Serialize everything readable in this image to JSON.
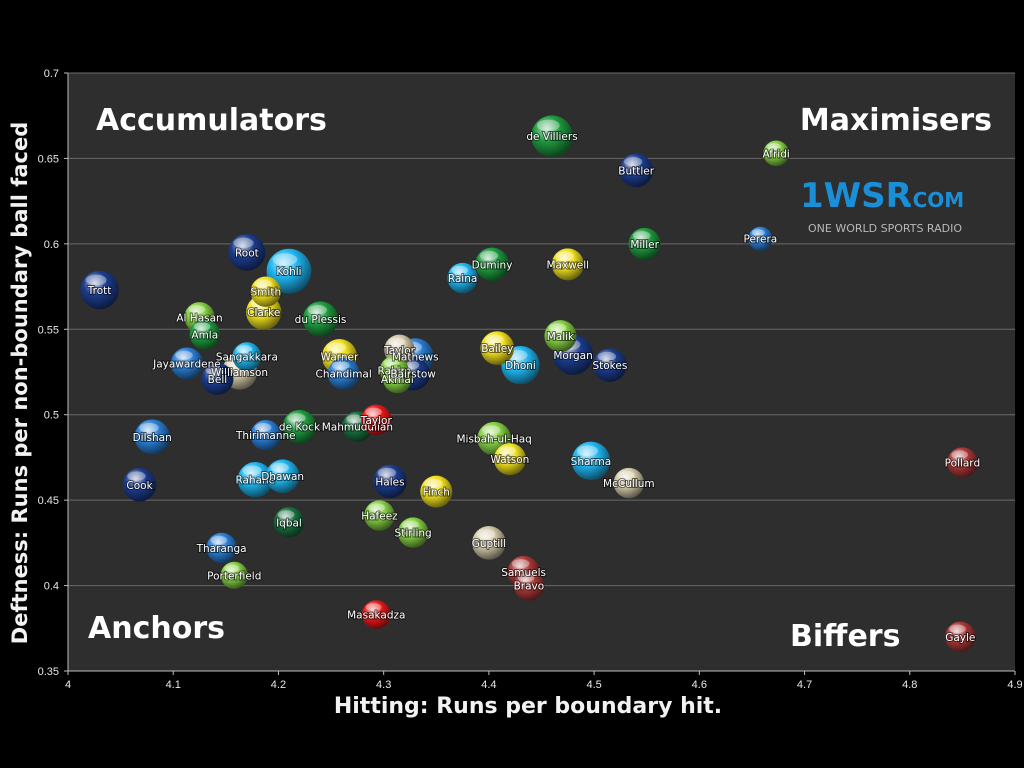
{
  "chart_data": {
    "type": "scatter",
    "xlabel": "Hitting: Runs per boundary hit.",
    "ylabel": "Deftness: Runs per non-boundary ball faced",
    "xlim": [
      4,
      4.9
    ],
    "ylim": [
      0.35,
      0.7
    ],
    "xticks": [
      "4",
      "4.1",
      "4.2",
      "4.3",
      "4.4",
      "4.5",
      "4.6",
      "4.7",
      "4.8",
      "4.9"
    ],
    "yticks": [
      "0.35",
      "0.4",
      "0.45",
      "0.5",
      "0.55",
      "0.6",
      "0.65",
      "0.7"
    ],
    "grid": "horizontal",
    "quadrant_labels": {
      "top_left": "Accumulators",
      "top_right": "Maximisers",
      "bottom_left": "Anchors",
      "bottom_right": "Biffers"
    },
    "colors": {
      "cyan": "#1fb5ef",
      "navy": "#1c3c8c",
      "green": "#1e9a3e",
      "darkgreen": "#1a7040",
      "lime": "#84cf42",
      "yellow": "#f0e020",
      "red": "#e81818",
      "brown": "#a83838",
      "beige": "#d2c8a8",
      "blue": "#2a7ed4"
    },
    "points": [
      {
        "name": "de Villiers",
        "x": 4.46,
        "y": 0.663,
        "color": "green",
        "size": 1.3
      },
      {
        "name": "Buttler",
        "x": 4.54,
        "y": 0.643,
        "color": "navy",
        "size": 1.05
      },
      {
        "name": "Afridi",
        "x": 4.673,
        "y": 0.653,
        "color": "lime",
        "size": 0.8
      },
      {
        "name": "Perera",
        "x": 4.658,
        "y": 0.603,
        "color": "blue",
        "size": 0.75
      },
      {
        "name": "Miller",
        "x": 4.548,
        "y": 0.6,
        "color": "green",
        "size": 1.0
      },
      {
        "name": "Maxwell",
        "x": 4.475,
        "y": 0.588,
        "color": "yellow",
        "size": 1.0
      },
      {
        "name": "Duminy",
        "x": 4.403,
        "y": 0.588,
        "color": "green",
        "size": 1.05
      },
      {
        "name": "Raina",
        "x": 4.375,
        "y": 0.58,
        "color": "cyan",
        "size": 0.95
      },
      {
        "name": "Trott",
        "x": 4.03,
        "y": 0.573,
        "color": "navy",
        "size": 1.2
      },
      {
        "name": "Root",
        "x": 4.17,
        "y": 0.595,
        "color": "navy",
        "size": 1.15
      },
      {
        "name": "Kohli",
        "x": 4.21,
        "y": 0.584,
        "color": "cyan",
        "size": 1.4
      },
      {
        "name": "Smith",
        "x": 4.188,
        "y": 0.572,
        "color": "yellow",
        "size": 0.95
      },
      {
        "name": "Clarke",
        "x": 4.186,
        "y": 0.56,
        "color": "yellow",
        "size": 1.1
      },
      {
        "name": "du Plessis",
        "x": 4.24,
        "y": 0.556,
        "color": "green",
        "size": 1.1
      },
      {
        "name": "Al Hasan",
        "x": 4.125,
        "y": 0.557,
        "color": "lime",
        "size": 0.95
      },
      {
        "name": "Amla",
        "x": 4.13,
        "y": 0.547,
        "color": "green",
        "size": 0.95
      },
      {
        "name": "Sangakkara",
        "x": 4.17,
        "y": 0.534,
        "color": "cyan",
        "size": 0.9
      },
      {
        "name": "Jayawardene",
        "x": 4.113,
        "y": 0.53,
        "color": "blue",
        "size": 1.0
      },
      {
        "name": "Williamson",
        "x": 4.163,
        "y": 0.525,
        "color": "beige",
        "size": 1.1
      },
      {
        "name": "Bell",
        "x": 4.142,
        "y": 0.521,
        "color": "navy",
        "size": 1.0
      },
      {
        "name": "Warner",
        "x": 4.258,
        "y": 0.534,
        "color": "yellow",
        "size": 1.1
      },
      {
        "name": "Taylor",
        "x": 4.315,
        "y": 0.538,
        "color": "beige",
        "size": 0.95
      },
      {
        "name": "Mathews",
        "x": 4.33,
        "y": 0.534,
        "color": "blue",
        "size": 1.15
      },
      {
        "name": "Chandimal",
        "x": 4.262,
        "y": 0.524,
        "color": "blue",
        "size": 1.0
      },
      {
        "name": "Rahim",
        "x": 4.31,
        "y": 0.526,
        "color": "lime",
        "size": 0.9
      },
      {
        "name": "Akmal",
        "x": 4.313,
        "y": 0.521,
        "color": "lime",
        "size": 0.9
      },
      {
        "name": "Bairstow",
        "x": 4.328,
        "y": 0.524,
        "color": "navy",
        "size": 1.05
      },
      {
        "name": "Bailey",
        "x": 4.408,
        "y": 0.539,
        "color": "yellow",
        "size": 1.05
      },
      {
        "name": "Dhoni",
        "x": 4.43,
        "y": 0.529,
        "color": "cyan",
        "size": 1.2
      },
      {
        "name": "Malik",
        "x": 4.468,
        "y": 0.546,
        "color": "lime",
        "size": 1.0
      },
      {
        "name": "Morgan",
        "x": 4.48,
        "y": 0.535,
        "color": "navy",
        "size": 1.25
      },
      {
        "name": "Stokes",
        "x": 4.515,
        "y": 0.529,
        "color": "navy",
        "size": 1.05
      },
      {
        "name": "Dilshan",
        "x": 4.08,
        "y": 0.487,
        "color": "blue",
        "size": 1.1
      },
      {
        "name": "Thirimanne",
        "x": 4.188,
        "y": 0.488,
        "color": "blue",
        "size": 0.95
      },
      {
        "name": "de Kock",
        "x": 4.22,
        "y": 0.493,
        "color": "green",
        "size": 1.05
      },
      {
        "name": "Mahmudullah",
        "x": 4.275,
        "y": 0.493,
        "color": "darkgreen",
        "size": 0.95
      },
      {
        "name": "Taylor",
        "x": 4.293,
        "y": 0.497,
        "color": "red",
        "size": 0.95
      },
      {
        "name": "Misbah-ul-Haq",
        "x": 4.405,
        "y": 0.486,
        "color": "lime",
        "size": 1.05
      },
      {
        "name": "Watson",
        "x": 4.42,
        "y": 0.474,
        "color": "yellow",
        "size": 1.0
      },
      {
        "name": "Sharma",
        "x": 4.497,
        "y": 0.473,
        "color": "cyan",
        "size": 1.2
      },
      {
        "name": "McCullum",
        "x": 4.533,
        "y": 0.46,
        "color": "beige",
        "size": 0.95
      },
      {
        "name": "Pollard",
        "x": 4.85,
        "y": 0.472,
        "color": "brown",
        "size": 0.95
      },
      {
        "name": "Cook",
        "x": 4.068,
        "y": 0.459,
        "color": "navy",
        "size": 1.05
      },
      {
        "name": "Rahane",
        "x": 4.178,
        "y": 0.462,
        "color": "cyan",
        "size": 1.1
      },
      {
        "name": "Dhawan",
        "x": 4.204,
        "y": 0.464,
        "color": "cyan",
        "size": 1.05
      },
      {
        "name": "Hales",
        "x": 4.306,
        "y": 0.461,
        "color": "navy",
        "size": 1.05
      },
      {
        "name": "Finch",
        "x": 4.35,
        "y": 0.455,
        "color": "yellow",
        "size": 1.0
      },
      {
        "name": "Iqbal",
        "x": 4.21,
        "y": 0.437,
        "color": "darkgreen",
        "size": 0.95
      },
      {
        "name": "Hafeez",
        "x": 4.296,
        "y": 0.441,
        "color": "lime",
        "size": 0.95
      },
      {
        "name": "Stirling",
        "x": 4.328,
        "y": 0.431,
        "color": "lime",
        "size": 0.95
      },
      {
        "name": "Guptill",
        "x": 4.4,
        "y": 0.425,
        "color": "beige",
        "size": 1.05
      },
      {
        "name": "Tharanga",
        "x": 4.146,
        "y": 0.422,
        "color": "blue",
        "size": 0.95
      },
      {
        "name": "Porterfield",
        "x": 4.158,
        "y": 0.406,
        "color": "lime",
        "size": 0.85
      },
      {
        "name": "Samuels",
        "x": 4.433,
        "y": 0.408,
        "color": "brown",
        "size": 1.0
      },
      {
        "name": "Bravo",
        "x": 4.438,
        "y": 0.4,
        "color": "brown",
        "size": 0.95
      },
      {
        "name": "Masakadza",
        "x": 4.293,
        "y": 0.383,
        "color": "red",
        "size": 0.9
      },
      {
        "name": "Gayle",
        "x": 4.848,
        "y": 0.37,
        "color": "brown",
        "size": 0.95
      }
    ]
  },
  "logo": {
    "main": "1WSR",
    "suffix": ".COM",
    "tagline": "ONE WORLD SPORTS RADIO"
  }
}
